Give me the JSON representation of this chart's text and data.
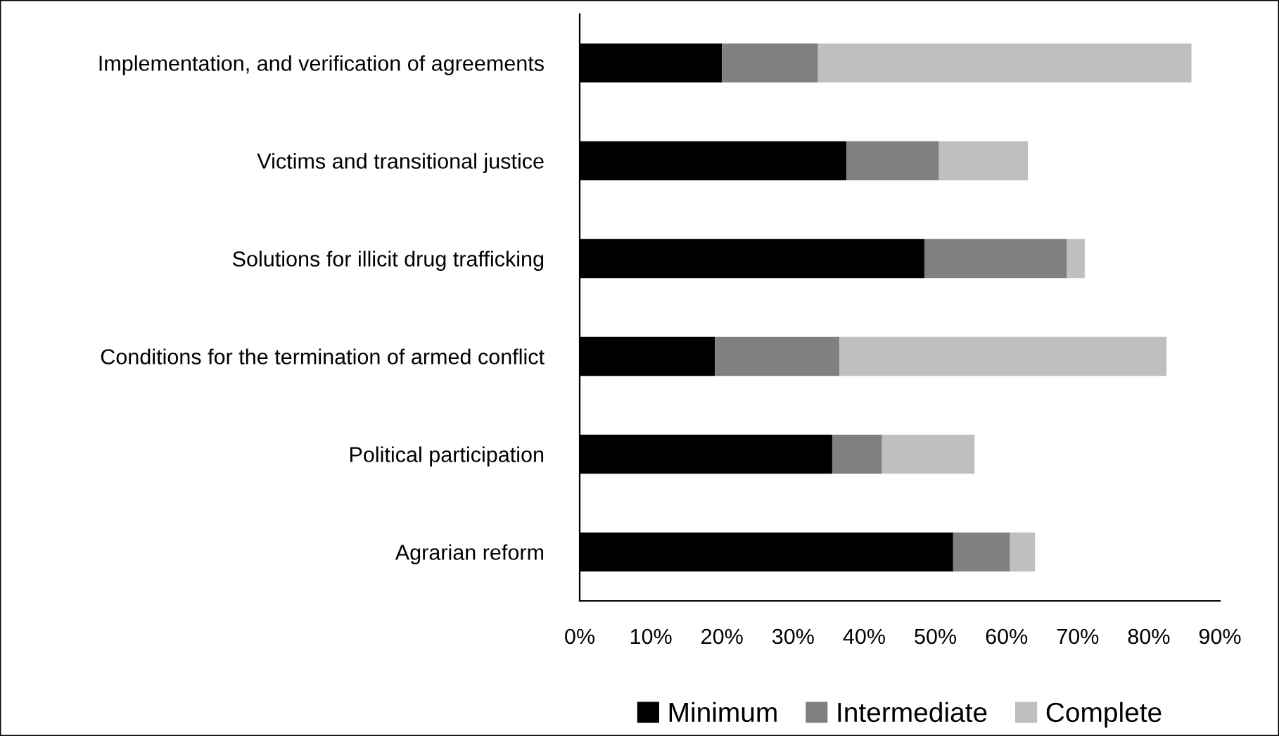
{
  "chart_data": {
    "type": "bar",
    "orientation": "horizontal",
    "stacked": true,
    "categories": [
      "Implementation, and verification of agreements",
      "Victims and transitional justice",
      "Solutions for illicit drug trafficking",
      "Conditions for the termination of armed conflict",
      "Political participation",
      "Agrarian reform"
    ],
    "series": [
      {
        "name": "Minimum",
        "color": "#000000",
        "values": [
          20,
          37.5,
          48.5,
          19,
          35.5,
          52.5
        ]
      },
      {
        "name": "Intermediate",
        "color": "#808080",
        "values": [
          13.5,
          13,
          20,
          17.5,
          7,
          8
        ]
      },
      {
        "name": "Complete",
        "color": "#bfbfbf",
        "values": [
          52.5,
          12.5,
          2.5,
          46,
          13,
          3.5
        ]
      }
    ],
    "xlim": [
      0,
      90
    ],
    "xticks": [
      {
        "value": 0,
        "label": "0%"
      },
      {
        "value": 10,
        "label": "10%"
      },
      {
        "value": 20,
        "label": "20%"
      },
      {
        "value": 30,
        "label": "30%"
      },
      {
        "value": 40,
        "label": "40%"
      },
      {
        "value": 50,
        "label": "50%"
      },
      {
        "value": 60,
        "label": "60%"
      },
      {
        "value": 70,
        "label": "70%"
      },
      {
        "value": 80,
        "label": "80%"
      },
      {
        "value": 90,
        "label": "90%"
      }
    ],
    "grid": false,
    "legend": "bottom"
  }
}
